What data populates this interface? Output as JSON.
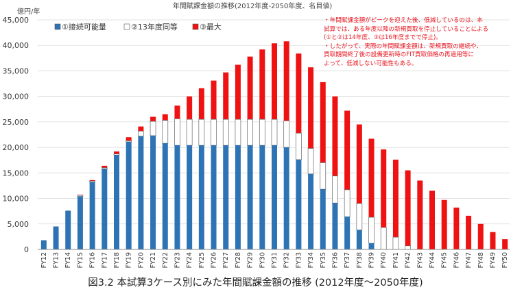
{
  "colors": {
    "existing": "#2e74b5",
    "fy13": "#ffffff",
    "max": "#ee1212",
    "note": "#e8141e",
    "grid": "#d9d9d9"
  },
  "note_lines": [
    "・年間賦課金額がピークを迎えた後、低減しているのは、本",
    "試算では、ある年度以降の新規買取を停止していることによる",
    "(①と②は14年度、③は16年度までで停止)。",
    "・したがって、実際の年間賦課金額は、新規買取の継続や、",
    "買取期間終了後の設備更新時のFIT買取価格の再適用等に",
    "よって、低減しない可能性もある。"
  ],
  "caption": "図3.2 本試算3ケース別にみた年間賦課金額の推移 (2012年度～2050年度)",
  "chart_data": {
    "type": "bar",
    "title": "年間賦課金額の推移(2012年度-2050年度、名目値)",
    "ylabel": "億円/年",
    "xlabel": "",
    "ylim": [
      0,
      45000
    ],
    "yticks": [
      0,
      5000,
      10000,
      15000,
      20000,
      25000,
      30000,
      35000,
      40000,
      45000
    ],
    "ytick_labels": [
      "0",
      "5,000",
      "10,000",
      "15,000",
      "20,000",
      "25,000",
      "30,000",
      "35,000",
      "40,000",
      "45,000"
    ],
    "grid": true,
    "legend_position": "top-left",
    "categories": [
      "FY12",
      "FY13",
      "FY14",
      "FY15",
      "FY16",
      "FY17",
      "FY18",
      "FY19",
      "FY20",
      "FY21",
      "FY22",
      "FY23",
      "FY24",
      "FY25",
      "FY26",
      "FY27",
      "FY28",
      "FY29",
      "FY30",
      "FY31",
      "FY32",
      "FY33",
      "FY34",
      "FY35",
      "FY36",
      "FY37",
      "FY38",
      "FY39",
      "FY40",
      "FY41",
      "FY42",
      "FY43",
      "FY44",
      "FY45",
      "FY46",
      "FY47",
      "FY48",
      "FY49",
      "FY50"
    ],
    "series": [
      {
        "name": "①接続可能量",
        "values": [
          1800,
          4500,
          7600,
          10400,
          13200,
          15800,
          18500,
          21100,
          22200,
          22300,
          20800,
          20400,
          20400,
          20400,
          20400,
          20400,
          20400,
          20400,
          20400,
          20400,
          20000,
          17600,
          14800,
          11800,
          9100,
          6400,
          3800,
          1200,
          0,
          0,
          0,
          0,
          0,
          0,
          0,
          0,
          0,
          0,
          0
        ]
      },
      {
        "name": "②13年度同等",
        "values": [
          1800,
          4500,
          7600,
          10600,
          13400,
          16000,
          18700,
          21300,
          23200,
          25100,
          25300,
          25600,
          25500,
          25500,
          25500,
          25500,
          25500,
          25500,
          25500,
          25500,
          25200,
          22800,
          19800,
          17000,
          14400,
          11700,
          9000,
          6300,
          4300,
          2400,
          700,
          0,
          0,
          0,
          0,
          0,
          0,
          0,
          0
        ]
      },
      {
        "name": "③最大",
        "values": [
          1800,
          4500,
          7600,
          10700,
          13600,
          16400,
          19200,
          22000,
          24100,
          26000,
          26500,
          28200,
          30000,
          31600,
          33100,
          34700,
          36200,
          37800,
          39200,
          40400,
          40800,
          38400,
          35700,
          32800,
          30000,
          27200,
          24500,
          21700,
          19600,
          17600,
          15500,
          13500,
          11500,
          9700,
          8200,
          6600,
          5000,
          3400,
          2000
        ]
      }
    ]
  }
}
